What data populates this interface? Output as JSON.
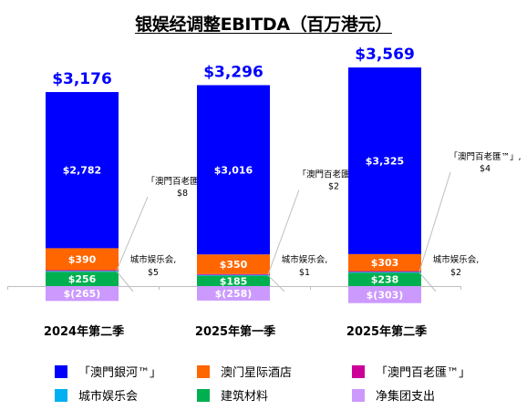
{
  "chart_data": {
    "type": "bar",
    "stacked": true,
    "title": "银娱经调整EBITDA（百万港元）",
    "categories": [
      "2024年第二季",
      "2025年第一季",
      "2025年第二季"
    ],
    "totals": [
      "$3,176",
      "$3,296",
      "$3,569"
    ],
    "total_values": [
      3176,
      3296,
      3569
    ],
    "series": [
      {
        "name": "「澳門銀河™」",
        "color": "#0000ff",
        "values": [
          2782,
          3016,
          3325
        ],
        "labels": [
          "$2,782",
          "$3,016",
          "$3,325"
        ]
      },
      {
        "name": "澳门星际酒店",
        "color": "#ff6600",
        "values": [
          390,
          350,
          303
        ],
        "labels": [
          "$390",
          "$350",
          "$303"
        ]
      },
      {
        "name": "「澳門百老匯™」",
        "color": "#cc0099",
        "values": [
          8,
          2,
          4
        ],
        "labels": [
          "$8",
          "$2",
          "$4"
        ]
      },
      {
        "name": "城市娱乐会",
        "color": "#00b0f0",
        "values": [
          5,
          1,
          2
        ],
        "labels": [
          "$5",
          "$1",
          "$2"
        ]
      },
      {
        "name": "建筑材料",
        "color": "#00b050",
        "values": [
          256,
          185,
          238
        ],
        "labels": [
          "$256",
          "$185",
          "$238"
        ]
      },
      {
        "name": "净集团支出",
        "color": "#cc99ff",
        "values": [
          -265,
          -258,
          -303
        ],
        "labels": [
          "$(265)",
          "$(258)",
          "$(303)"
        ]
      }
    ],
    "annotations": {
      "broadway_prefix": "「澳門百老匯™」,",
      "city_club_prefix": "城市娱乐会,"
    }
  }
}
